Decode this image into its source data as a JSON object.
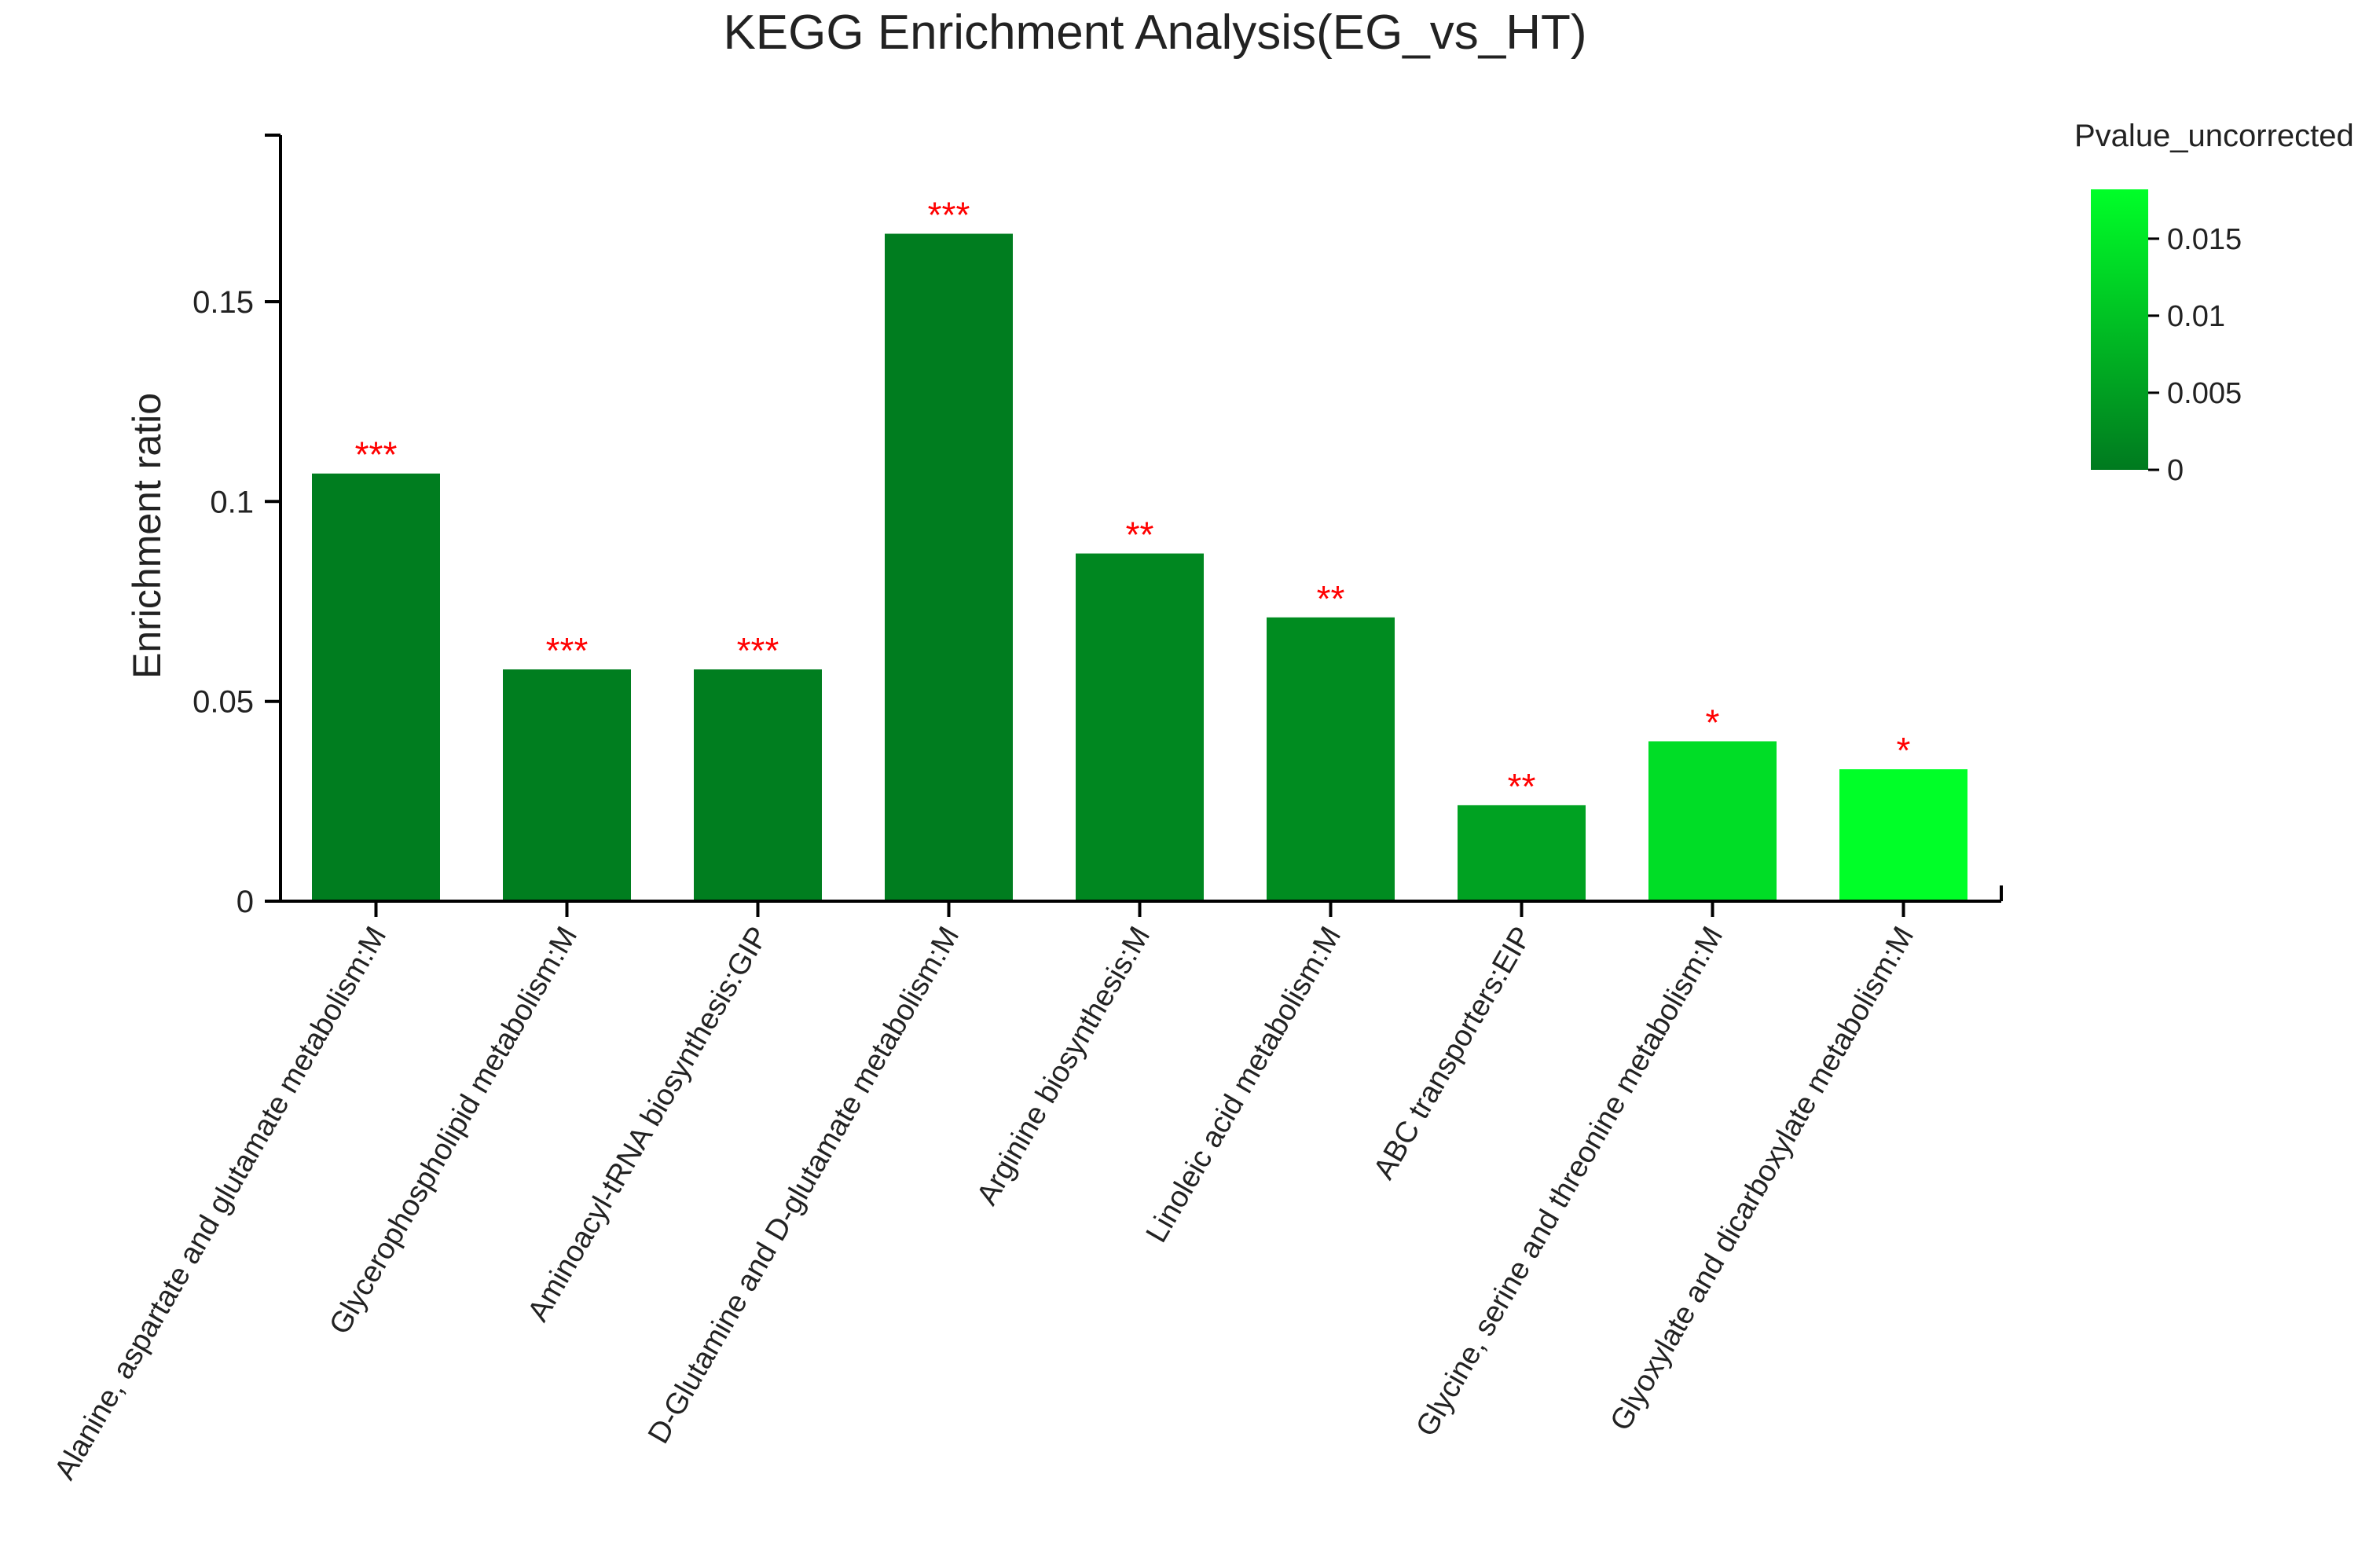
{
  "chart_data": {
    "type": "bar",
    "title": "KEGG Enrichment Analysis(EG_vs_HT)",
    "xlabel": "",
    "ylabel": "Enrichment ratio",
    "ylim": [
      0,
      0.19
    ],
    "yticks": [
      0,
      0.05,
      0.1,
      0.15
    ],
    "ytick_labels": [
      "0",
      "0.05",
      "0.1",
      "0.15"
    ],
    "categories": [
      "Alanine, aspartate and glutamate metabolism:M",
      "Glycerophospholipid metabolism:M",
      "Aminoacyl-tRNA biosynthesis:GIP",
      "D-Glutamine and D-glutamate metabolism:M",
      "Arginine biosynthesis:M",
      "Linoleic acid metabolism:M",
      "ABC transporters:EIP",
      "Glycine, serine and threonine metabolism:M",
      "Glyoxylate and dicarboxylate metabolism:M"
    ],
    "values": [
      0.107,
      0.058,
      0.058,
      0.167,
      0.087,
      0.071,
      0.024,
      0.04,
      0.033
    ],
    "pvalues": [
      0.0004,
      0.0006,
      0.0006,
      0.0004,
      0.0018,
      0.0024,
      0.0055,
      0.0135,
      0.0182
    ],
    "significance": [
      "***",
      "***",
      "***",
      "***",
      "**",
      "**",
      "**",
      "*",
      "*"
    ],
    "grid": false,
    "colorbar": {
      "title": "Pvalue_uncorrected",
      "range": [
        0,
        0.0182
      ],
      "ticks": [
        0,
        0.005,
        0.01,
        0.015
      ],
      "tick_labels": [
        "0",
        "0.005",
        "0.01",
        "0.015"
      ],
      "color_low": "#007a1f",
      "color_high": "#00ff28",
      "placement": "top-right"
    }
  }
}
